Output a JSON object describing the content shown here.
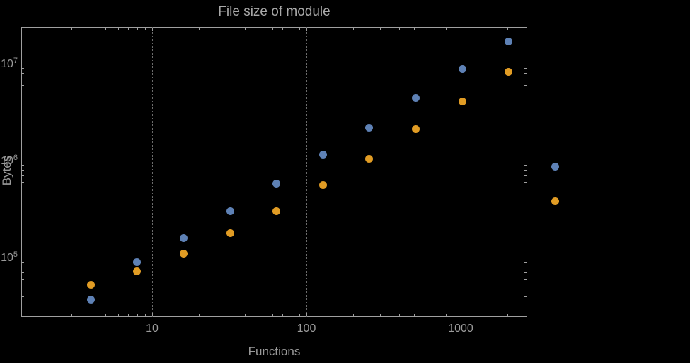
{
  "chart_data": {
    "type": "scatter",
    "title": "File size of module",
    "xlabel": "Functions",
    "ylabel": "Bytes",
    "x_scale": "log",
    "y_scale": "log",
    "xlim": [
      1.45,
      2700
    ],
    "ylim": [
      24000,
      24000000
    ],
    "grid": "dotted-at-major-ticks",
    "legend": "none",
    "colors": {
      "background": "#000000",
      "frame": "#9f9f9f",
      "gridline": "#6b6b6b",
      "text": "#9a9a9a",
      "series1": "#5E81B5",
      "series2": "#E19C24"
    },
    "x_ticks": [
      {
        "value": 10,
        "label": "10"
      },
      {
        "value": 100,
        "label": "100"
      },
      {
        "value": 1000,
        "label": "1000"
      }
    ],
    "y_ticks": [
      {
        "value": 100000,
        "base": "10",
        "exp": "5"
      },
      {
        "value": 1000000,
        "base": "10",
        "exp": "6"
      },
      {
        "value": 10000000,
        "base": "10",
        "exp": "7"
      }
    ],
    "series": [
      {
        "name": "series-1-blue",
        "color": "#5E81B5",
        "points": [
          [
            4,
            37000
          ],
          [
            8,
            90000
          ],
          [
            16,
            160000
          ],
          [
            32,
            300000
          ],
          [
            64,
            580000
          ],
          [
            128,
            1150000
          ],
          [
            256,
            2200000
          ],
          [
            512,
            4400000
          ],
          [
            1024,
            8800000
          ],
          [
            2048,
            17000000
          ],
          [
            4096,
            870000
          ]
        ]
      },
      {
        "name": "series-2-orange",
        "color": "#E19C24",
        "points": [
          [
            4,
            52000
          ],
          [
            8,
            72000
          ],
          [
            16,
            110000
          ],
          [
            32,
            180000
          ],
          [
            64,
            300000
          ],
          [
            128,
            560000
          ],
          [
            256,
            1050000
          ],
          [
            512,
            2100000
          ],
          [
            1024,
            4100000
          ],
          [
            2048,
            8300000
          ],
          [
            4096,
            380000
          ]
        ]
      }
    ]
  }
}
